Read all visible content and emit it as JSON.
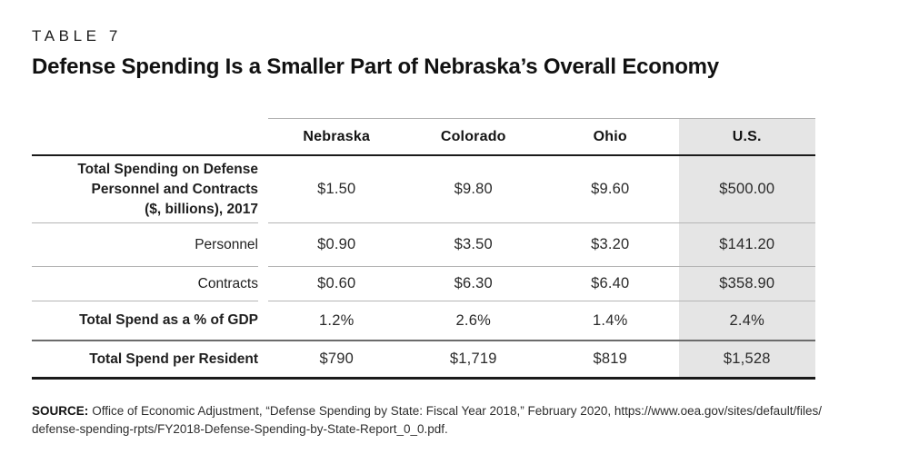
{
  "page": {
    "kicker": "TABLE 7",
    "title": "Defense Spending Is a Smaller Part of Nebraska’s Overall Economy"
  },
  "chart_data": {
    "type": "table",
    "title": "Defense Spending Is a Smaller Part of Nebraska’s Overall Economy",
    "columns": [
      "Nebraska",
      "Colorado",
      "Ohio",
      "U.S."
    ],
    "highlighted_column": "U.S.",
    "highlight_color": "#e5e5e5",
    "rows": [
      {
        "label": "Total Spending on Defense\nPersonnel and Contracts\n($, billions), 2017",
        "values": [
          "$1.50",
          "$9.80",
          "$9.60",
          "$500.00"
        ]
      },
      {
        "label": "Personnel",
        "values": [
          "$0.90",
          "$3.50",
          "$3.20",
          "$141.20"
        ]
      },
      {
        "label": "Contracts",
        "values": [
          "$0.60",
          "$6.30",
          "$6.40",
          "$358.90"
        ]
      },
      {
        "label": "Total Spend as a % of GDP",
        "values": [
          "1.2%",
          "2.6%",
          "1.4%",
          "2.4%"
        ]
      },
      {
        "label": "Total Spend per Resident",
        "values": [
          "$790",
          "$1,719",
          "$819",
          "$1,528"
        ]
      }
    ]
  },
  "source": {
    "label": "SOURCE:",
    "line1": "Office of Economic Adjustment, “Defense Spending by State: Fiscal Year 2018,” February 2020, https://www.oea.gov/sites/default/files/",
    "line2": "defense-spending-rpts/FY2018-Defense-Spending-by-State-Report_0_0.pdf."
  }
}
